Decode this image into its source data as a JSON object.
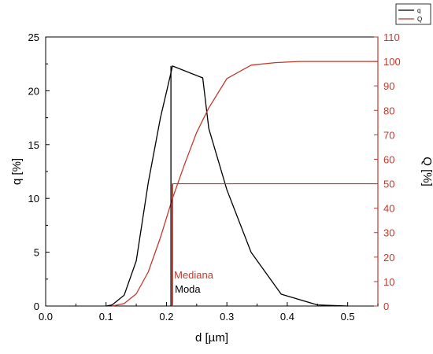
{
  "chart_data": {
    "type": "line",
    "xlabel": "d [µm]",
    "ylabel_left": "q [%]",
    "ylabel_right": "Q [%]",
    "xlim": [
      0.0,
      0.55
    ],
    "ylim_left": [
      0,
      25
    ],
    "ylim_right": [
      0,
      110
    ],
    "x_ticks": [
      "0.0",
      "0.1",
      "0.2",
      "0.3",
      "0.4",
      "0.5"
    ],
    "x_tick_values": [
      0.0,
      0.1,
      0.2,
      0.3,
      0.4,
      0.5
    ],
    "y_left_ticks": [
      "0",
      "5",
      "10",
      "15",
      "20",
      "25"
    ],
    "y_left_tick_values": [
      0,
      5,
      10,
      15,
      20,
      25
    ],
    "y_right_ticks": [
      "0",
      "10",
      "20",
      "30",
      "40",
      "50",
      "60",
      "70",
      "80",
      "90",
      "100",
      "110"
    ],
    "y_right_tick_values": [
      0,
      10,
      20,
      30,
      40,
      50,
      60,
      70,
      80,
      90,
      100,
      110
    ],
    "grid": false,
    "legend_position": "top-right",
    "series": [
      {
        "name": "q",
        "axis": "left",
        "color": "#000000",
        "x": [
          0.1,
          0.11,
          0.13,
          0.15,
          0.17,
          0.19,
          0.2,
          0.21,
          0.26,
          0.27,
          0.3,
          0.34,
          0.39,
          0.45,
          0.5
        ],
        "y": [
          0.0,
          0.1,
          1.0,
          4.2,
          11.5,
          17.5,
          19.9,
          22.3,
          21.2,
          16.5,
          10.8,
          5.0,
          1.1,
          0.1,
          0.0
        ]
      },
      {
        "name": "Q",
        "axis": "right",
        "color": "#c0392b",
        "x": [
          0.11,
          0.13,
          0.15,
          0.17,
          0.19,
          0.21,
          0.23,
          0.25,
          0.27,
          0.3,
          0.34,
          0.38,
          0.42,
          0.55
        ],
        "y": [
          0,
          1,
          5,
          14,
          28,
          44,
          58,
          71,
          81,
          93,
          98.5,
          99.5,
          100,
          100
        ]
      }
    ],
    "annotations": [
      {
        "text": "Mediana",
        "color": "#c0392b",
        "x": 0.21,
        "y_right": 50
      },
      {
        "text": "Moda",
        "color": "#000000",
        "x": 0.21,
        "y_left": 22.3
      }
    ]
  }
}
